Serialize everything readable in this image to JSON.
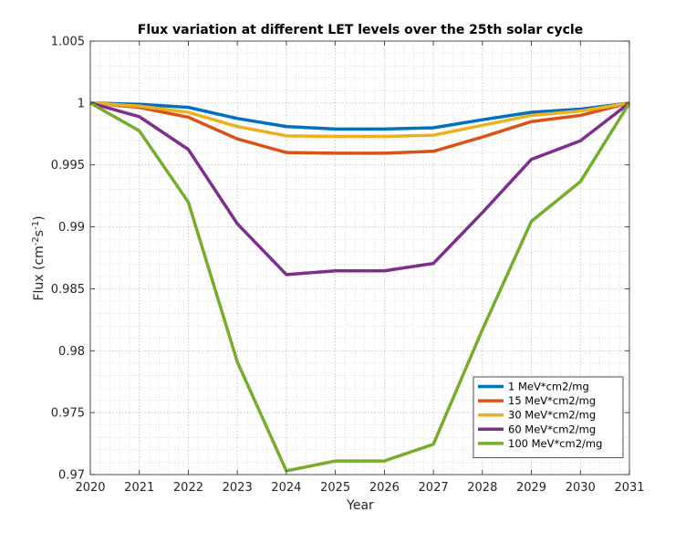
{
  "chart_data": {
    "type": "line",
    "title": "Flux variation at different LET levels over the 25th solar cycle",
    "xlabel": "Year",
    "ylabel": {
      "base": "Flux (cm",
      "sup1": "-2",
      "mid": "s",
      "sup2": "-1",
      "end": ")"
    },
    "xlim": [
      2020,
      2031
    ],
    "ylim": [
      0.97,
      1.005
    ],
    "x_ticks": [
      2020,
      2021,
      2022,
      2023,
      2024,
      2025,
      2026,
      2027,
      2028,
      2029,
      2030,
      2031
    ],
    "x_tick_labels": [
      "2020",
      "2021",
      "2022",
      "2023",
      "2024",
      "2025",
      "2026",
      "2027",
      "2028",
      "2029",
      "2030",
      "2031"
    ],
    "y_ticks": [
      0.97,
      0.975,
      0.98,
      0.985,
      0.99,
      0.995,
      1,
      1.005
    ],
    "y_tick_labels": [
      "0.97",
      "0.975",
      "0.98",
      "0.985",
      "0.99",
      "0.995",
      "1",
      "1.005"
    ],
    "grid": true,
    "minor_grid": true,
    "legend_position": "bottom-right",
    "x": [
      2020,
      2021,
      2022,
      2023,
      2024,
      2025,
      2026,
      2027,
      2028,
      2029,
      2030,
      2031
    ],
    "series": [
      {
        "name": "1 MeV*cm2/mg",
        "color": "#0072BD",
        "values": [
          1.0,
          0.9999,
          0.99965,
          0.99875,
          0.9981,
          0.9979,
          0.9979,
          0.998,
          0.99865,
          0.99925,
          0.9995,
          1.0
        ]
      },
      {
        "name": "15 MeV*cm2/mg",
        "color": "#D95319",
        "values": [
          1.0,
          0.99965,
          0.99885,
          0.9971,
          0.996,
          0.99595,
          0.99595,
          0.9961,
          0.99725,
          0.9985,
          0.999,
          1.0
        ]
      },
      {
        "name": "30 MeV*cm2/mg",
        "color": "#EDB120",
        "values": [
          1.0,
          0.99975,
          0.99925,
          0.9981,
          0.99735,
          0.9973,
          0.9973,
          0.9974,
          0.9982,
          0.999,
          0.99935,
          1.0
        ]
      },
      {
        "name": "60 MeV*cm2/mg",
        "color": "#7E2F8E",
        "values": [
          1.0,
          0.9989,
          0.99625,
          0.99025,
          0.98615,
          0.98645,
          0.98645,
          0.98705,
          0.99115,
          0.99545,
          0.99695,
          1.0
        ]
      },
      {
        "name": "100 MeV*cm2/mg",
        "color": "#77AC30",
        "values": [
          1.0,
          0.99775,
          0.992,
          0.9791,
          0.9703,
          0.9711,
          0.9711,
          0.97245,
          0.9817,
          0.99045,
          0.99365,
          1.0
        ]
      }
    ]
  }
}
